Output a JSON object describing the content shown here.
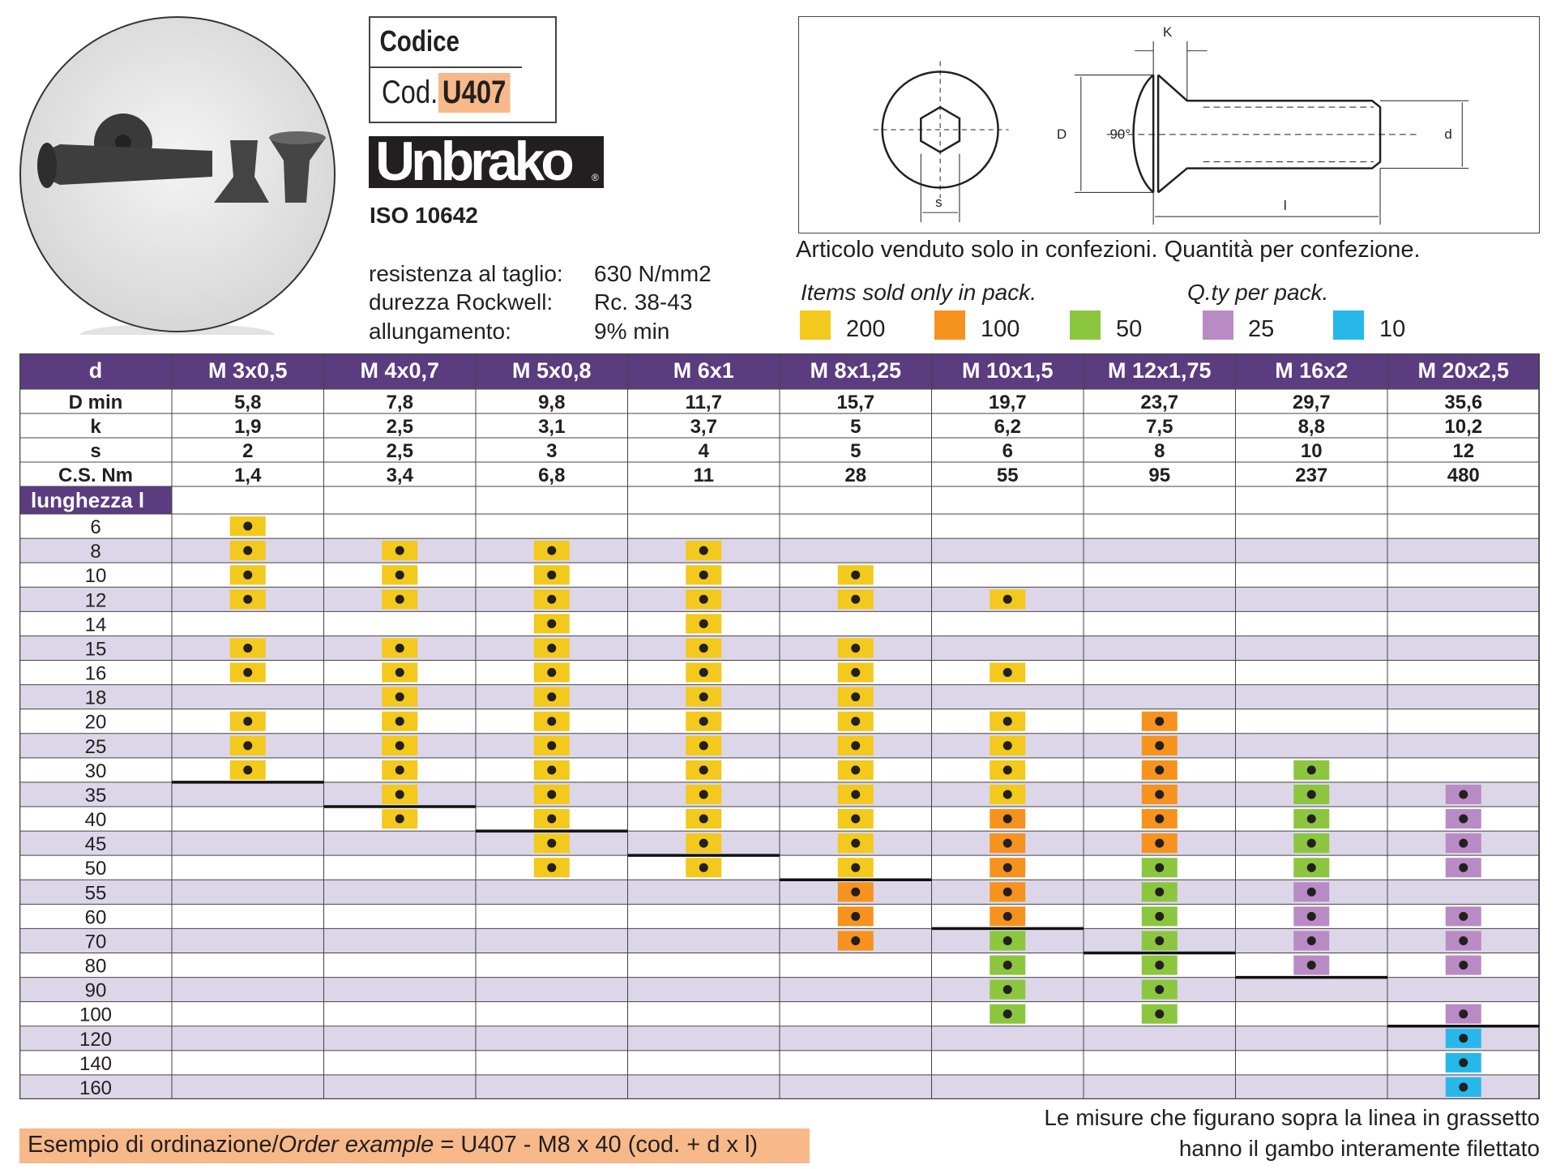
{
  "codice_box": {
    "title": "Codice",
    "prefix": "Cod.",
    "code": "U407"
  },
  "brand": {
    "logo_text": "Unbrako",
    "reg": "®",
    "standard": "ISO 10642"
  },
  "properties": [
    {
      "label": "resistenza al taglio:",
      "value": "630 N/mm2"
    },
    {
      "label": "durezza Rockwell:",
      "value": "Rc. 38-43"
    },
    {
      "label": "allungamento:",
      "value": "9% min"
    }
  ],
  "drawing_labels": {
    "K": "K",
    "D": "D",
    "angle": "90°",
    "d": "d",
    "s": "s",
    "l": "l"
  },
  "notes": {
    "sold_in_packs": "Articolo venduto solo in confezioni. Quantità per confezione.",
    "items_sold": "Items sold only in pack.",
    "qty_pack": "Q.ty per pack."
  },
  "colors": {
    "y": "#f2c91c",
    "o": "#f6921e",
    "g": "#8cc63f",
    "p": "#b98bc4",
    "b": "#27b8e9",
    "header": "#5b3c7f",
    "row_alt": "#dcd6e8",
    "order_bg": "#f7b98a"
  },
  "legend": [
    {
      "key": "y",
      "label": "200"
    },
    {
      "key": "o",
      "label": "100"
    },
    {
      "key": "g",
      "label": "50"
    },
    {
      "key": "p",
      "label": "25"
    },
    {
      "key": "b",
      "label": "10"
    }
  ],
  "table": {
    "d_label": "d",
    "sizes": [
      "M 3x0,5",
      "M 4x0,7",
      "M 5x0,8",
      "M 6x1",
      "M 8x1,25",
      "M 10x1,5",
      "M 12x1,75",
      "M 16x2",
      "M 20x2,5"
    ],
    "specs": [
      {
        "label": "D min",
        "values": [
          "5,8",
          "7,8",
          "9,8",
          "11,7",
          "15,7",
          "19,7",
          "23,7",
          "29,7",
          "35,6"
        ]
      },
      {
        "label": "k",
        "values": [
          "1,9",
          "2,5",
          "3,1",
          "3,7",
          "5",
          "6,2",
          "7,5",
          "8,8",
          "10,2"
        ]
      },
      {
        "label": "s",
        "values": [
          "2",
          "2,5",
          "3",
          "4",
          "5",
          "6",
          "8",
          "10",
          "12"
        ]
      },
      {
        "label": "C.S. Nm",
        "values": [
          "1,4",
          "3,4",
          "6,8",
          "11",
          "28",
          "55",
          "95",
          "237",
          "480"
        ]
      }
    ],
    "length_label": "lunghezza l",
    "lengths": [
      "6",
      "8",
      "10",
      "12",
      "14",
      "15",
      "16",
      "18",
      "20",
      "25",
      "30",
      "35",
      "40",
      "45",
      "50",
      "55",
      "60",
      "70",
      "80",
      "90",
      "100",
      "120",
      "140",
      "160"
    ],
    "availability": [
      [
        "y",
        "",
        "",
        "",
        "",
        "",
        "",
        "",
        ""
      ],
      [
        "y",
        "y",
        "y",
        "y",
        "",
        "",
        "",
        "",
        ""
      ],
      [
        "y",
        "y",
        "y",
        "y",
        "y",
        "",
        "",
        "",
        ""
      ],
      [
        "y",
        "y",
        "y",
        "y",
        "y",
        "y",
        "",
        "",
        ""
      ],
      [
        "",
        "",
        "y",
        "y",
        "",
        "",
        "",
        "",
        ""
      ],
      [
        "y",
        "y",
        "y",
        "y",
        "y",
        "",
        "",
        "",
        ""
      ],
      [
        "y",
        "y",
        "y",
        "y",
        "y",
        "y",
        "",
        "",
        ""
      ],
      [
        "",
        "y",
        "y",
        "y",
        "y",
        "",
        "",
        "",
        ""
      ],
      [
        "y",
        "y",
        "y",
        "y",
        "y",
        "y",
        "o",
        "",
        ""
      ],
      [
        "y",
        "y",
        "y",
        "y",
        "y",
        "y",
        "o",
        "",
        ""
      ],
      [
        "y",
        "y",
        "y",
        "y",
        "y",
        "y",
        "o",
        "g",
        ""
      ],
      [
        "",
        "y",
        "y",
        "y",
        "y",
        "y",
        "o",
        "g",
        "p"
      ],
      [
        "",
        "y",
        "y",
        "y",
        "y",
        "o",
        "o",
        "g",
        "p"
      ],
      [
        "",
        "",
        "y",
        "y",
        "y",
        "o",
        "o",
        "g",
        "p"
      ],
      [
        "",
        "",
        "y",
        "y",
        "y",
        "o",
        "g",
        "g",
        "p"
      ],
      [
        "",
        "",
        "",
        "",
        "o",
        "o",
        "g",
        "p",
        ""
      ],
      [
        "",
        "",
        "",
        "",
        "o",
        "o",
        "g",
        "p",
        "p"
      ],
      [
        "",
        "",
        "",
        "",
        "o",
        "g",
        "g",
        "p",
        "p"
      ],
      [
        "",
        "",
        "",
        "",
        "",
        "g",
        "g",
        "p",
        "p"
      ],
      [
        "",
        "",
        "",
        "",
        "",
        "g",
        "g",
        "",
        ""
      ],
      [
        "",
        "",
        "",
        "",
        "",
        "g",
        "g",
        "",
        "p"
      ],
      [
        "",
        "",
        "",
        "",
        "",
        "",
        "",
        "",
        "b"
      ],
      [
        "",
        "",
        "",
        "",
        "",
        "",
        "",
        "",
        "b"
      ],
      [
        "",
        "",
        "",
        "",
        "",
        "",
        "",
        "",
        "b"
      ]
    ],
    "full_thread_last_row": [
      10,
      11,
      12,
      13,
      14,
      16,
      17,
      18,
      20
    ]
  },
  "footer": {
    "line1": "Le misure che figurano sopra la linea in grassetto",
    "line2": "hanno il gambo interamente filettato",
    "order_prefix": "Esempio di ordinazione/",
    "order_italic": "Order example",
    "order_suffix": " = U407 - M8 x 40 (cod. + d x l)"
  }
}
